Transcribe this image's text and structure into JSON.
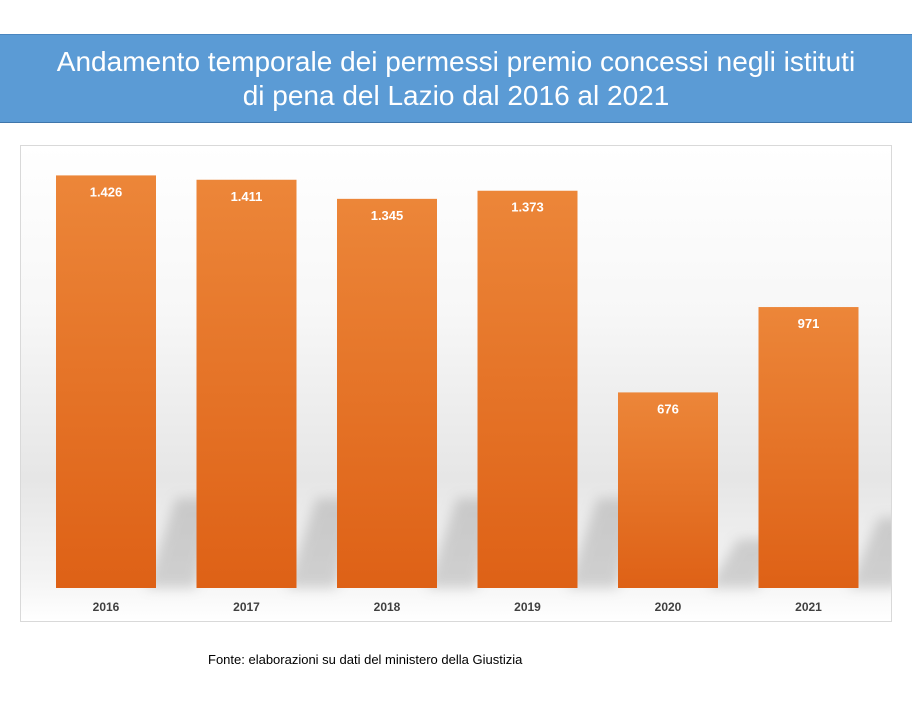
{
  "header": {
    "title_line1": "Andamento temporale dei permessi premio concessi negli istituti",
    "title_line2": "di pena del Lazio dal 2016 al 2021",
    "banner_color": "#5b9bd5"
  },
  "chart_data": {
    "type": "bar",
    "categories": [
      "2016",
      "2017",
      "2018",
      "2019",
      "2020",
      "2021"
    ],
    "values": [
      1426,
      1411,
      1345,
      1373,
      676,
      971
    ],
    "data_labels": [
      "1.426",
      "1.411",
      "1.345",
      "1.373",
      "676",
      "971"
    ],
    "bar_color": "#e46c1b",
    "ylim": [
      0,
      1500
    ],
    "grid": false,
    "legend": "none"
  },
  "footer": {
    "source": "Fonte: elaborazioni su dati del ministero della Giustizia"
  }
}
